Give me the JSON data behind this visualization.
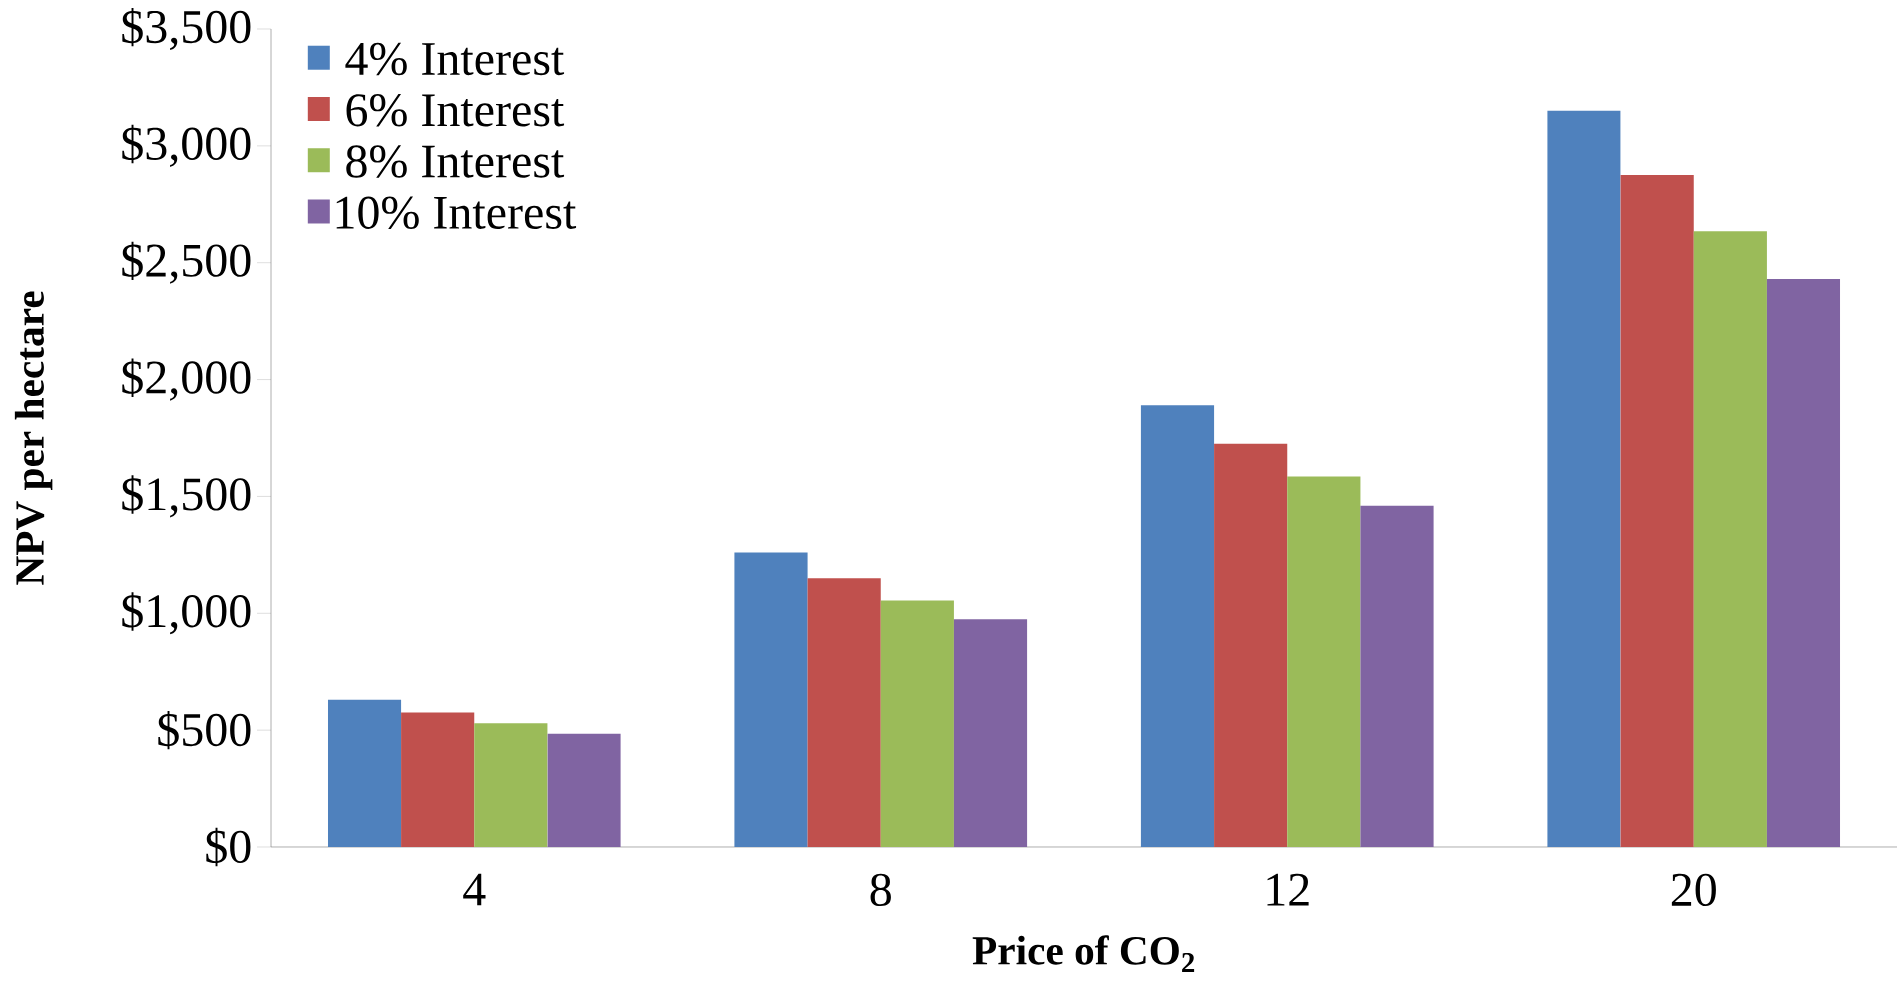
{
  "chart_data": {
    "type": "bar",
    "xlabel": "Price of CO$_{2}$",
    "ylabel": "NPV per hectare",
    "categories": [
      "4",
      "8",
      "12",
      "20"
    ],
    "series": [
      {
        "name": "4% Interest",
        "color": "#4f81bd",
        "values": [
          630,
          1260,
          1890,
          3150
        ]
      },
      {
        "name": "6% Interest",
        "color": "#c0504d",
        "values": [
          575,
          1150,
          1725,
          2875
        ]
      },
      {
        "name": "8% Interest",
        "color": "#9bbb59",
        "values": [
          530,
          1055,
          1585,
          2635
        ]
      },
      {
        "name": "10% Interest",
        "color": "#8064a2",
        "values": [
          485,
          975,
          1460,
          2430
        ]
      }
    ],
    "ylim": [
      0,
      3500
    ],
    "yticks": [
      {
        "value": 0,
        "label": "$0"
      },
      {
        "value": 500,
        "label": "$500"
      },
      {
        "value": 1000,
        "label": "$1,000"
      },
      {
        "value": 1500,
        "label": "$1,500"
      },
      {
        "value": 2000,
        "label": "$2,000"
      },
      {
        "value": 2500,
        "label": "$2,500"
      },
      {
        "value": 3000,
        "label": "$3,000"
      },
      {
        "value": 3500,
        "label": "$3,500"
      }
    ],
    "legend": "top left"
  }
}
